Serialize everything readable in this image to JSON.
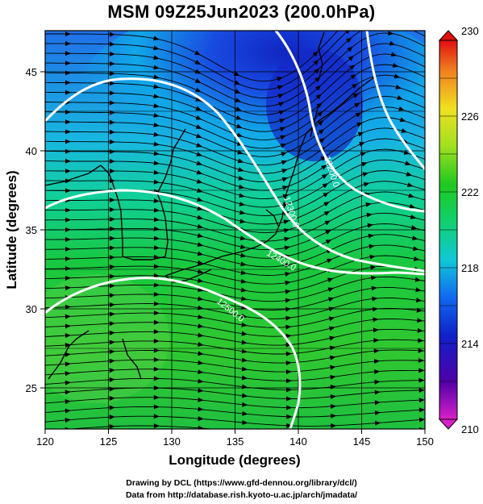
{
  "title": "MSM 09Z25Jun2023 (200.0hPa)",
  "xaxis": {
    "label": "Longitude (degrees)",
    "ticks": [
      120,
      125,
      130,
      135,
      140,
      145,
      150
    ],
    "range": [
      120,
      150
    ]
  },
  "yaxis": {
    "label": "Latitude  (degrees)",
    "ticks": [
      25,
      30,
      35,
      40,
      45
    ],
    "range": [
      22.4,
      47.6
    ]
  },
  "colorbar": {
    "ticks": [
      210,
      214,
      218,
      222,
      226,
      230
    ],
    "range": [
      210,
      230
    ]
  },
  "contours": [
    {
      "label": "12200.0",
      "color": "#ffffff"
    },
    {
      "label": "12300.0",
      "color": "#ffffff"
    },
    {
      "label": "12400.0",
      "color": "#ffffff"
    },
    {
      "label": "12500.0",
      "color": "#ffffff"
    }
  ],
  "credits": {
    "line1": "Drawing by DCL (https://www.gfd-dennou.org/library/dcl/)",
    "line2": "Data from http://database.rish.kyoto-u.ac.jp/arch/jmadata/"
  }
}
